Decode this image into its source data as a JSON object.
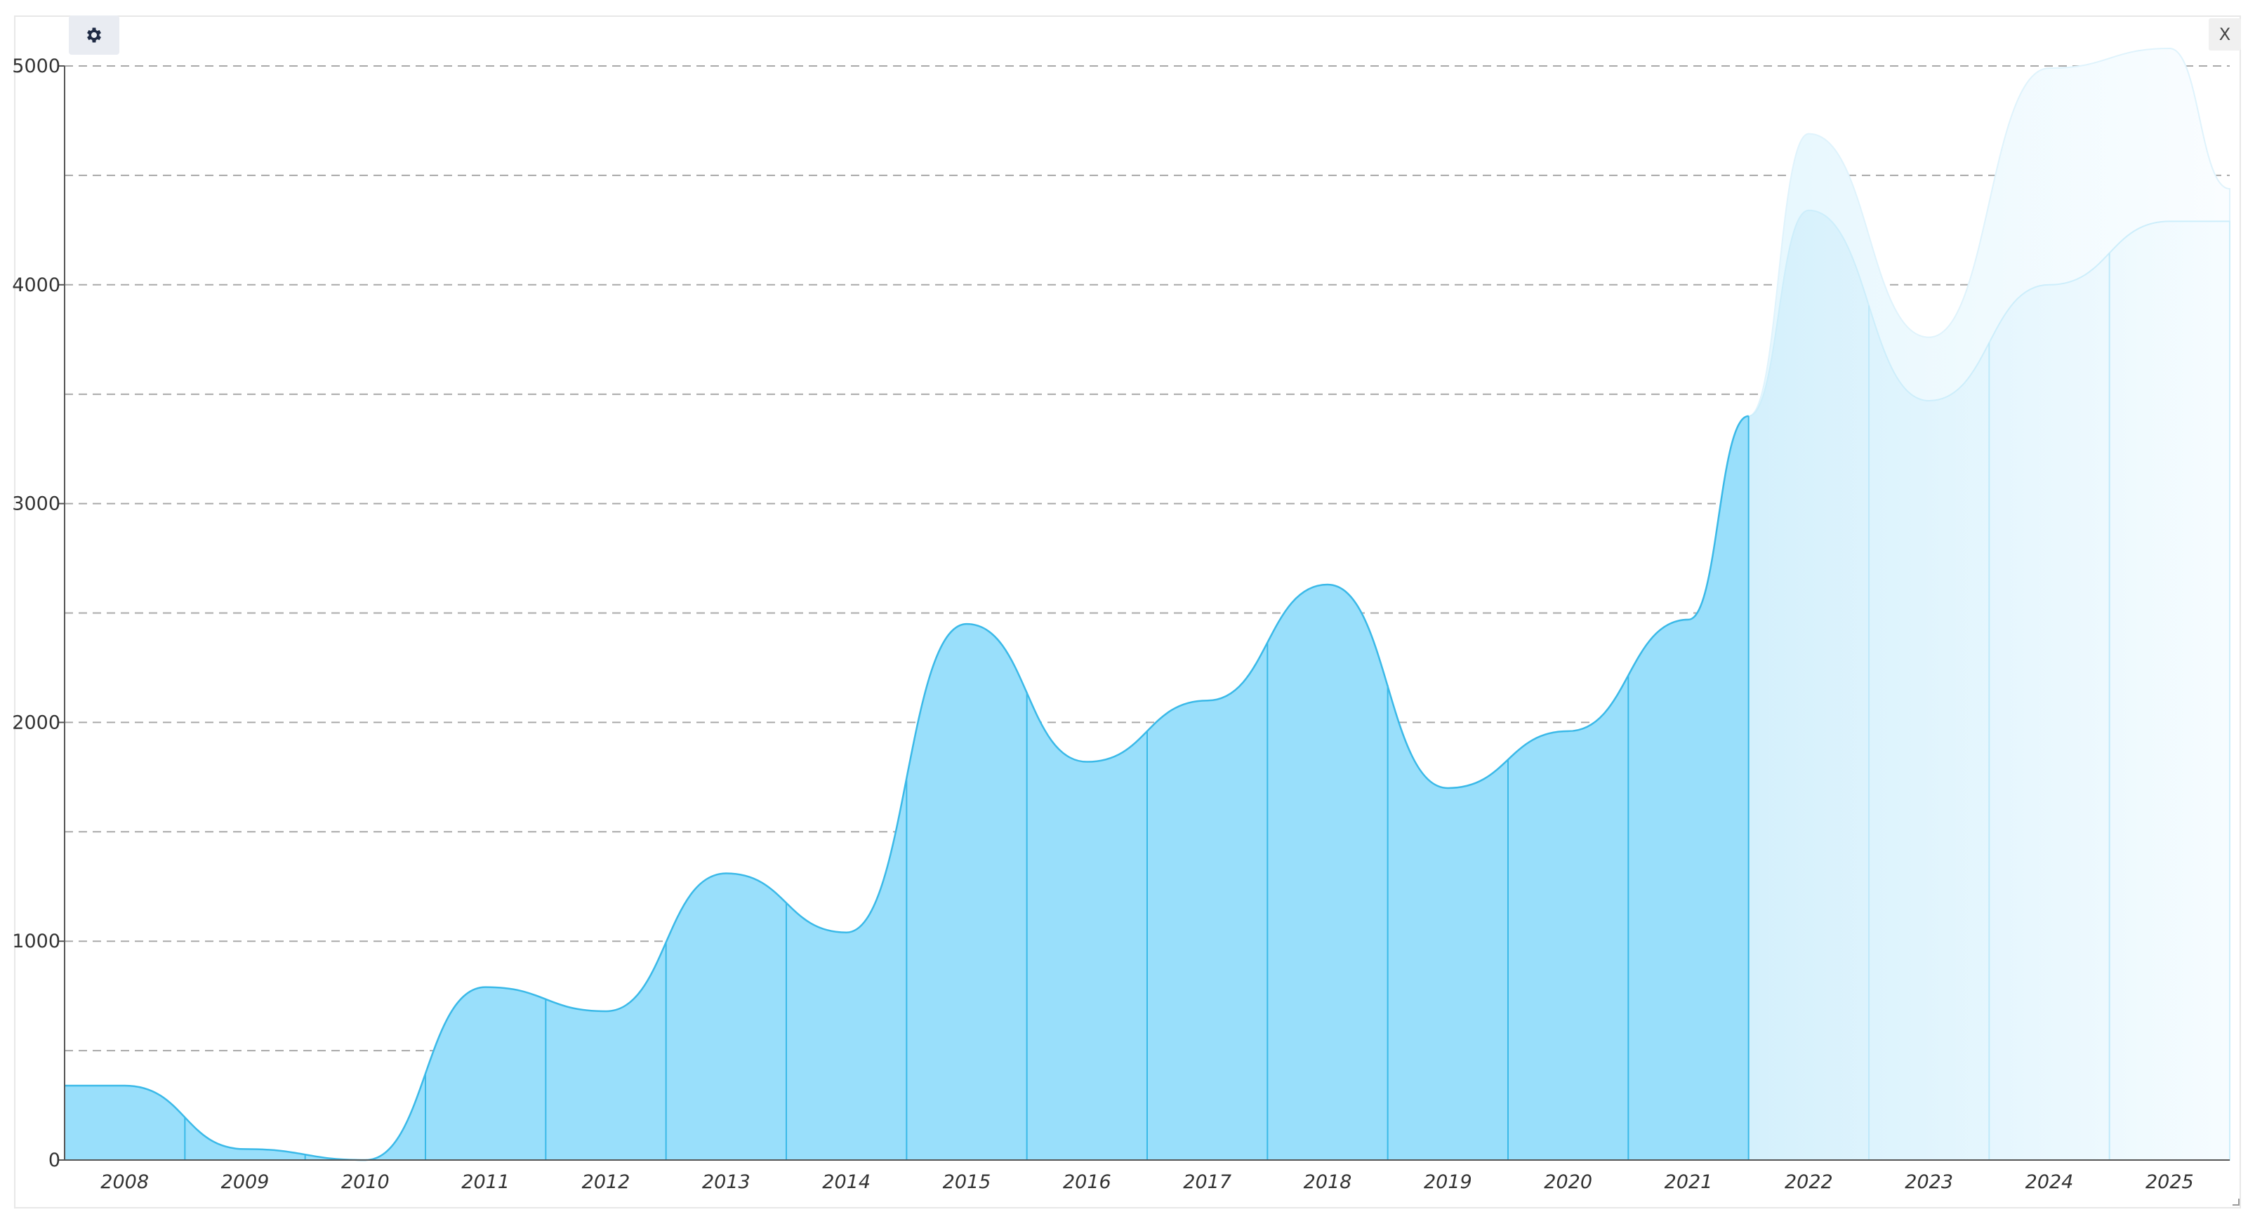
{
  "toolbar": {
    "settings_icon": "gear-icon",
    "close_label": "X"
  },
  "colors": {
    "actual_fill": "#99dffb",
    "actual_stroke": "#3ab9e8",
    "forecast_fill": "#e3f6fd",
    "forecast_upper_fill": "#f1fafe",
    "grid": "#a9a9a9",
    "axis": "#555555"
  },
  "chart_data": {
    "type": "area",
    "title": "",
    "xlabel": "",
    "ylabel": "",
    "ylim": [
      0,
      5000
    ],
    "y_ticks": [
      0,
      1000,
      2000,
      3000,
      4000,
      5000
    ],
    "y_gridlines": [
      500,
      1000,
      1500,
      2000,
      2500,
      3000,
      3500,
      4000,
      4500,
      5000
    ],
    "grid": true,
    "legend": "none",
    "categories": [
      "2008",
      "2009",
      "2010",
      "2011",
      "2012",
      "2013",
      "2014",
      "2015",
      "2016",
      "2017",
      "2018",
      "2019",
      "2020",
      "2021",
      "2022",
      "2023",
      "2024",
      "2025"
    ],
    "series": [
      {
        "values": [
          340,
          50,
          0,
          790,
          680,
          1310,
          1040,
          2450,
          1820,
          2100,
          2630,
          1700,
          1960,
          2470,
          null,
          null,
          null,
          null
        ]
      },
      {
        "values": [
          null,
          null,
          null,
          null,
          null,
          null,
          null,
          null,
          null,
          null,
          null,
          null,
          null,
          null,
          4340,
          3470,
          4000,
          4290
        ]
      },
      {
        "values": [
          null,
          null,
          null,
          null,
          null,
          null,
          null,
          null,
          null,
          null,
          null,
          null,
          null,
          null,
          4690,
          3760,
          4990,
          5080
        ]
      }
    ]
  }
}
